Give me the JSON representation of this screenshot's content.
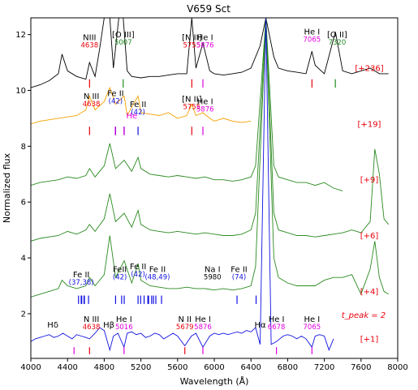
{
  "chart_data": {
    "type": "line",
    "title": "V659 Sct",
    "xlabel": "Wavelength (Å)",
    "ylabel": "Normalized flux",
    "xlim": [
      4000,
      8000
    ],
    "ylim": [
      0.4,
      12.6
    ],
    "xticks": [
      4000,
      4400,
      4800,
      5200,
      5600,
      6000,
      6400,
      6800,
      7200,
      7600,
      8000
    ],
    "yticks": [
      2,
      4,
      6,
      8,
      10,
      12
    ],
    "grid": false,
    "legend": "none",
    "peak_label": "t_peak = 2",
    "series": [
      {
        "epoch": "[+236]",
        "color": "#000000",
        "offset": 10.3,
        "x": [
          3980,
          4000,
          4100,
          4200,
          4300,
          4340,
          4400,
          4500,
          4600,
          4640,
          4700,
          4750,
          4800,
          4861,
          4900,
          4959,
          5007,
          5050,
          5100,
          5200,
          5300,
          5400,
          5500,
          5600,
          5700,
          5755,
          5800,
          5876,
          5950,
          6000,
          6100,
          6200,
          6300,
          6400,
          6500,
          6563,
          6650,
          6700,
          6800,
          6900,
          7000,
          7065,
          7100,
          7200,
          7320,
          7400,
          7500,
          7600,
          7700,
          7800,
          7900
        ],
        "y": [
          10.05,
          10.1,
          10.2,
          10.35,
          10.6,
          11.3,
          10.7,
          10.5,
          10.4,
          11.0,
          10.5,
          11.5,
          12.6,
          12.6,
          10.8,
          12.6,
          12.6,
          10.7,
          10.5,
          10.45,
          10.5,
          10.5,
          10.55,
          10.6,
          10.6,
          12.6,
          10.8,
          11.7,
          10.7,
          10.6,
          10.55,
          10.6,
          10.65,
          10.8,
          11.6,
          12.6,
          11.2,
          10.8,
          10.7,
          10.65,
          10.6,
          11.4,
          10.9,
          10.6,
          12.1,
          10.7,
          10.6,
          10.7,
          10.8,
          10.6,
          10.6
        ]
      },
      {
        "epoch": "[+19]",
        "color": "#f5a000",
        "offset": 8.6,
        "x": [
          4000,
          4100,
          4200,
          4300,
          4400,
          4500,
          4600,
          4640,
          4700,
          4800,
          4861,
          4924,
          5018,
          5050,
          5100,
          5169,
          5200,
          5300,
          5400,
          5500,
          5600,
          5700,
          5755,
          5800,
          5876,
          5950,
          6000,
          6100,
          6200,
          6300,
          6400
        ],
        "y": [
          8.8,
          8.9,
          8.95,
          9.0,
          9.05,
          9.1,
          9.3,
          9.8,
          9.3,
          9.6,
          10.1,
          9.5,
          9.8,
          9.1,
          9.4,
          9.8,
          9.2,
          9.15,
          9.1,
          9.2,
          9.0,
          9.1,
          9.5,
          9.1,
          9.2,
          9.0,
          8.9,
          9.0,
          8.9,
          8.85,
          8.9
        ]
      },
      {
        "epoch": "[+9]",
        "color": "#2a8a1f",
        "offset": 6.6,
        "x": [
          4000,
          4100,
          4200,
          4300,
          4400,
          4500,
          4600,
          4640,
          4700,
          4800,
          4861,
          4924,
          5018,
          5100,
          5169,
          5200,
          5300,
          5400,
          5500,
          5600,
          5700,
          5800,
          5900,
          6000,
          6100,
          6200,
          6300,
          6400,
          6450,
          6563,
          6650,
          6700,
          6800,
          6900,
          7000,
          7100,
          7200,
          7300,
          7400
        ],
        "y": [
          6.6,
          6.7,
          6.75,
          6.8,
          6.9,
          6.85,
          6.95,
          7.2,
          6.9,
          7.3,
          8.1,
          7.2,
          7.5,
          7.1,
          7.6,
          7.2,
          7.0,
          6.95,
          6.9,
          6.95,
          6.9,
          6.85,
          6.9,
          6.8,
          6.8,
          6.75,
          6.8,
          6.9,
          7.3,
          12.6,
          7.3,
          6.9,
          6.8,
          6.7,
          6.7,
          6.6,
          6.7,
          6.5,
          6.4
        ]
      },
      {
        "epoch": "[+6]",
        "color": "#2a8a1f",
        "offset": 4.6,
        "x": [
          4000,
          4100,
          4200,
          4300,
          4400,
          4500,
          4600,
          4640,
          4700,
          4800,
          4861,
          4924,
          5018,
          5100,
          5169,
          5200,
          5300,
          5400,
          5500,
          5600,
          5700,
          5800,
          5900,
          6000,
          6100,
          6200,
          6300,
          6400,
          6450,
          6563,
          6650,
          6700,
          6800,
          6900,
          7000,
          7100,
          7200,
          7300,
          7400,
          7500,
          7600,
          7700,
          7750,
          7800,
          7850,
          7900
        ],
        "y": [
          4.6,
          4.7,
          4.75,
          4.8,
          4.95,
          4.85,
          5.0,
          5.2,
          4.95,
          5.4,
          6.3,
          5.3,
          5.6,
          5.1,
          5.7,
          5.2,
          5.0,
          4.95,
          4.9,
          4.95,
          4.9,
          4.85,
          4.9,
          4.85,
          4.8,
          4.8,
          4.85,
          5.0,
          5.6,
          12.6,
          5.6,
          5.0,
          4.9,
          4.8,
          4.8,
          4.75,
          4.8,
          4.85,
          4.9,
          5.0,
          4.9,
          5.3,
          7.9,
          7.0,
          5.4,
          5.2
        ]
      },
      {
        "epoch": "[+4]",
        "color": "#2a8a1f",
        "offset": 2.6,
        "x": [
          4000,
          4100,
          4200,
          4300,
          4340,
          4400,
          4500,
          4600,
          4640,
          4700,
          4800,
          4861,
          4924,
          5018,
          5100,
          5169,
          5200,
          5300,
          5400,
          5500,
          5600,
          5700,
          5800,
          5900,
          6000,
          6100,
          6200,
          6300,
          6400,
          6450,
          6563,
          6650,
          6700,
          6800,
          6900,
          7000,
          7100,
          7200,
          7300,
          7400,
          7500,
          7600,
          7700,
          7750,
          7800,
          7850,
          7900
        ],
        "y": [
          2.6,
          2.7,
          2.8,
          2.9,
          3.2,
          3.0,
          2.9,
          3.0,
          3.3,
          3.0,
          3.4,
          4.8,
          3.3,
          3.9,
          3.1,
          3.8,
          3.2,
          3.0,
          2.95,
          2.9,
          2.9,
          2.95,
          2.9,
          2.9,
          2.85,
          2.9,
          2.85,
          2.9,
          3.0,
          3.7,
          12.6,
          4.0,
          3.3,
          3.1,
          3.0,
          3.0,
          3.0,
          3.2,
          3.3,
          3.3,
          3.4,
          2.7,
          3.6,
          4.6,
          3.3,
          2.8,
          2.7
        ]
      },
      {
        "epoch": "[+1]",
        "color": "#1010e0",
        "offset": 0.9,
        "x": [
          4000,
          4050,
          4100,
          4150,
          4200,
          4250,
          4300,
          4350,
          4400,
          4450,
          4500,
          4550,
          4600,
          4640,
          4700,
          4750,
          4800,
          4861,
          4900,
          4950,
          5016,
          5050,
          5100,
          5150,
          5200,
          5250,
          5300,
          5350,
          5400,
          5450,
          5500,
          5550,
          5600,
          5679,
          5750,
          5800,
          5876,
          5950,
          6000,
          6050,
          6100,
          6150,
          6200,
          6250,
          6300,
          6350,
          6400,
          6450,
          6500,
          6563,
          6620,
          6678,
          6750,
          6800,
          6850,
          6900,
          6950,
          7000,
          7065,
          7100,
          7150,
          7200,
          7250,
          7300
        ],
        "y": [
          1.0,
          1.1,
          1.15,
          1.2,
          1.25,
          1.15,
          1.2,
          1.3,
          1.2,
          1.1,
          1.25,
          1.2,
          1.15,
          1.1,
          1.3,
          1.5,
          1.4,
          0.7,
          1.2,
          1.3,
          0.8,
          1.3,
          1.35,
          1.25,
          1.3,
          1.15,
          1.2,
          1.3,
          1.25,
          1.1,
          1.2,
          1.3,
          1.2,
          0.85,
          1.2,
          1.3,
          0.8,
          1.2,
          1.3,
          1.25,
          1.3,
          1.25,
          1.3,
          1.35,
          1.3,
          1.4,
          1.35,
          1.5,
          0.9,
          12.6,
          0.9,
          1.0,
          1.2,
          1.25,
          1.2,
          1.1,
          1.2,
          1.1,
          0.8,
          1.2,
          1.25,
          1.2,
          0.7,
          1.1
        ]
      }
    ],
    "annotations": [
      {
        "text": "NIII",
        "sub": "4638",
        "color": "#000",
        "subcolor": "#e8000b",
        "x": 4640,
        "y": 11.8
      },
      {
        "text": "[O III]",
        "sub": "5007",
        "color": "#000",
        "subcolor": "#1f8b1f",
        "x": 5007,
        "y": 11.9
      },
      {
        "text": "[N II]",
        "sub": "5755",
        "color": "#000",
        "subcolor": "#e8000b",
        "x": 5755,
        "y": 11.8
      },
      {
        "text": "He I",
        "sub": "5876",
        "color": "#000",
        "subcolor": "#e000e0",
        "x": 5900,
        "y": 11.8
      },
      {
        "text": "He I",
        "sub": "7065",
        "color": "#000",
        "subcolor": "#e000e0",
        "x": 7065,
        "y": 12.0
      },
      {
        "text": "[O II]",
        "sub": "7320",
        "color": "#000",
        "subcolor": "#1f8b1f",
        "x": 7340,
        "y": 11.9
      },
      {
        "text": "N III",
        "sub": "4638",
        "color": "#000",
        "subcolor": "#e8000b",
        "x": 4660,
        "y": 9.7
      },
      {
        "text": "Fe II",
        "sub": "(42)",
        "color": "#000",
        "subcolor": "#1010e0",
        "x": 4924,
        "y": 9.8
      },
      {
        "text": "Fe II",
        "sub": "(42)",
        "color": "#000",
        "subcolor": "#1010e0",
        "x": 5169,
        "y": 9.4
      },
      {
        "text": "He",
        "sub": "",
        "color": "#e000e0",
        "subcolor": "#e000e0",
        "x": 5100,
        "y": 9.0
      },
      {
        "text": "[N II]",
        "sub": "5755",
        "color": "#000",
        "subcolor": "#e8000b",
        "x": 5755,
        "y": 9.6
      },
      {
        "text": "He I",
        "sub": "5876",
        "color": "#000",
        "subcolor": "#e000e0",
        "x": 5900,
        "y": 9.5
      },
      {
        "text": "Fe II",
        "sub": "(37,38)",
        "color": "#000",
        "subcolor": "#1010e0",
        "x": 4550,
        "y": 3.3
      },
      {
        "text": "FeII",
        "sub": "(42)",
        "color": "#000",
        "subcolor": "#1010e0",
        "x": 4970,
        "y": 3.5
      },
      {
        "text": "Fe II",
        "sub": "(42)",
        "color": "#000",
        "subcolor": "#1010e0",
        "x": 5169,
        "y": 3.6
      },
      {
        "text": "Fe II",
        "sub": "(48,49)",
        "color": "#000",
        "subcolor": "#1010e0",
        "x": 5380,
        "y": 3.5
      },
      {
        "text": "Na I",
        "sub": "5980",
        "color": "#000",
        "subcolor": "#000",
        "x": 5980,
        "y": 3.5
      },
      {
        "text": "Fe II",
        "sub": "(74)",
        "color": "#000",
        "subcolor": "#1010e0",
        "x": 6270,
        "y": 3.5
      },
      {
        "text": "Hδ",
        "sub": "",
        "color": "#000",
        "subcolor": "#000",
        "x": 4240,
        "y": 1.5
      },
      {
        "text": "N III",
        "sub": "4638",
        "color": "#000",
        "subcolor": "#e8000b",
        "x": 4660,
        "y": 1.7
      },
      {
        "text": "Hβ",
        "sub": "",
        "color": "#000",
        "subcolor": "#000",
        "x": 4850,
        "y": 1.5
      },
      {
        "text": "He I",
        "sub": "5016",
        "color": "#000",
        "subcolor": "#e000e0",
        "x": 5016,
        "y": 1.7
      },
      {
        "text": "N II",
        "sub": "5679",
        "color": "#000",
        "subcolor": "#e8000b",
        "x": 5679,
        "y": 1.7
      },
      {
        "text": "He I",
        "sub": "5876",
        "color": "#000",
        "subcolor": "#e000e0",
        "x": 5876,
        "y": 1.7
      },
      {
        "text": "Hα",
        "sub": "",
        "color": "#000",
        "subcolor": "#000",
        "x": 6500,
        "y": 1.5
      },
      {
        "text": "He I",
        "sub": "6678",
        "color": "#000",
        "subcolor": "#e000e0",
        "x": 6678,
        "y": 1.7
      },
      {
        "text": "He I",
        "sub": "7065",
        "color": "#000",
        "subcolor": "#e000e0",
        "x": 7065,
        "y": 1.7
      }
    ],
    "line_markers": [
      {
        "color": "#e8000b",
        "x": [
          4640,
          5755,
          7065
        ],
        "y0": 10.1,
        "y1": 10.4
      },
      {
        "color": "#1f8b1f",
        "x": [
          5007,
          7320
        ],
        "y0": 10.1,
        "y1": 10.4
      },
      {
        "color": "#e000e0",
        "x": [
          5876
        ],
        "y0": 10.1,
        "y1": 10.4
      },
      {
        "color": "#e8000b",
        "x": [
          4640,
          5755
        ],
        "y0": 8.4,
        "y1": 8.7
      },
      {
        "color": "#1010e0",
        "x": [
          4924,
          5018,
          5169
        ],
        "y0": 8.4,
        "y1": 8.7
      },
      {
        "color": "#e000e0",
        "x": [
          4921,
          5016,
          5876
        ],
        "y0": 8.4,
        "y1": 8.7
      },
      {
        "color": "#1010e0",
        "x": [
          4520,
          4549,
          4555,
          4580,
          4584,
          4629,
          4924,
          4990,
          5018,
          5169,
          5197,
          5235,
          5276,
          5284,
          5317,
          5337,
          5363,
          5425,
          6248,
          6456
        ],
        "y0": 2.35,
        "y1": 2.65
      },
      {
        "color": "#e000e0",
        "x": [
          4471,
          5016,
          5876,
          6678,
          7065
        ],
        "y0": 0.55,
        "y1": 0.8
      },
      {
        "color": "#e8000b",
        "x": [
          4640,
          5679
        ],
        "y0": 0.55,
        "y1": 0.8
      }
    ]
  }
}
